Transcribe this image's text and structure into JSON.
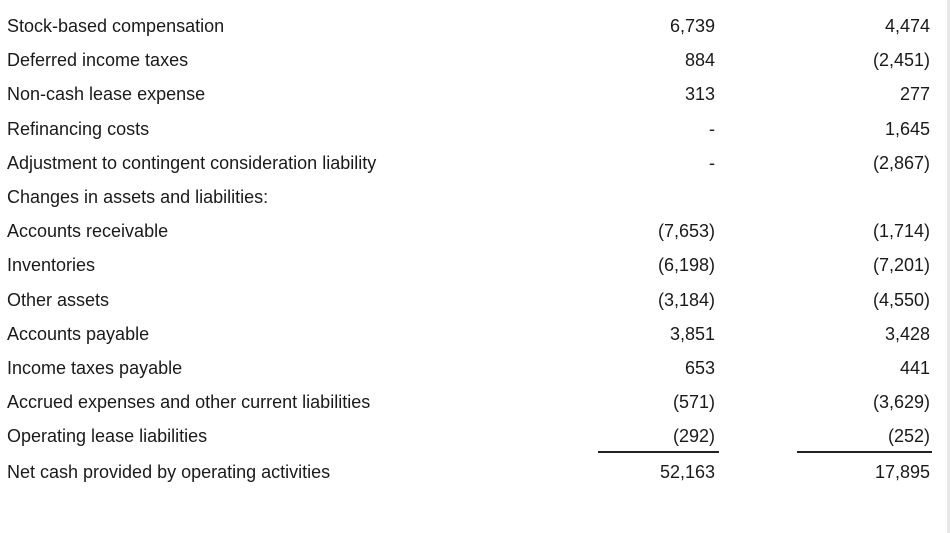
{
  "table": {
    "rows": [
      [
        "Stock-based compensation",
        "6,739",
        "4,474"
      ],
      [
        "Deferred income taxes",
        "884",
        "(2,451)"
      ],
      [
        "Non-cash lease expense",
        "313",
        "277"
      ],
      [
        "Refinancing costs",
        "-",
        "1,645"
      ],
      [
        "Adjustment to contingent consideration liability",
        "-",
        "(2,867)"
      ],
      [
        "Changes in assets and liabilities:"
      ],
      [
        "Accounts receivable",
        "(7,653)",
        "(1,714)"
      ],
      [
        "Inventories",
        "(6,198)",
        "(7,201)"
      ],
      [
        "Other assets",
        "(3,184)",
        "(4,550)"
      ],
      [
        "Accounts payable",
        "3,851",
        "3,428"
      ],
      [
        "Income taxes payable",
        "653",
        "441"
      ],
      [
        "Accrued expenses and other current liabilities",
        "(571)",
        "(3,629)"
      ],
      [
        "Operating lease liabilities",
        "(292)",
        "(252)"
      ],
      [
        "Net cash provided by operating activities",
        "52,163",
        "17,895"
      ]
    ]
  }
}
